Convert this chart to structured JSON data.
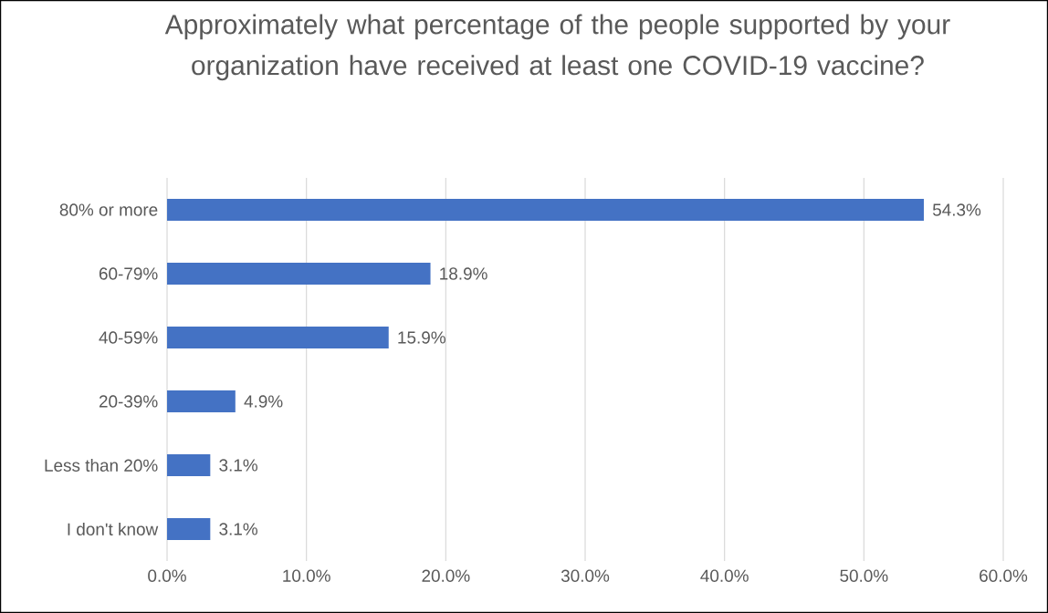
{
  "chart_data": {
    "type": "bar",
    "orientation": "horizontal",
    "title": "Approximately what percentage of the people supported by your organization have received at least one COVID-19 vaccine?",
    "categories": [
      "80% or more",
      "60-79%",
      "40-59%",
      "20-39%",
      "Less than 20%",
      "I don't know"
    ],
    "values": [
      54.3,
      18.9,
      15.9,
      4.9,
      3.1,
      3.1
    ],
    "value_labels": [
      "54.3%",
      "18.9%",
      "15.9%",
      "4.9%",
      "3.1%",
      "3.1%"
    ],
    "color": "#4472c4",
    "xlim": [
      0,
      60
    ],
    "xticks": [
      {
        "value": 0,
        "label": "0.0%"
      },
      {
        "value": 10,
        "label": "10.0%"
      },
      {
        "value": 20,
        "label": "20.0%"
      },
      {
        "value": 30,
        "label": "30.0%"
      },
      {
        "value": 40,
        "label": "40.0%"
      },
      {
        "value": 50,
        "label": "50.0%"
      },
      {
        "value": 60,
        "label": "60.0%"
      }
    ],
    "grid": "x"
  }
}
